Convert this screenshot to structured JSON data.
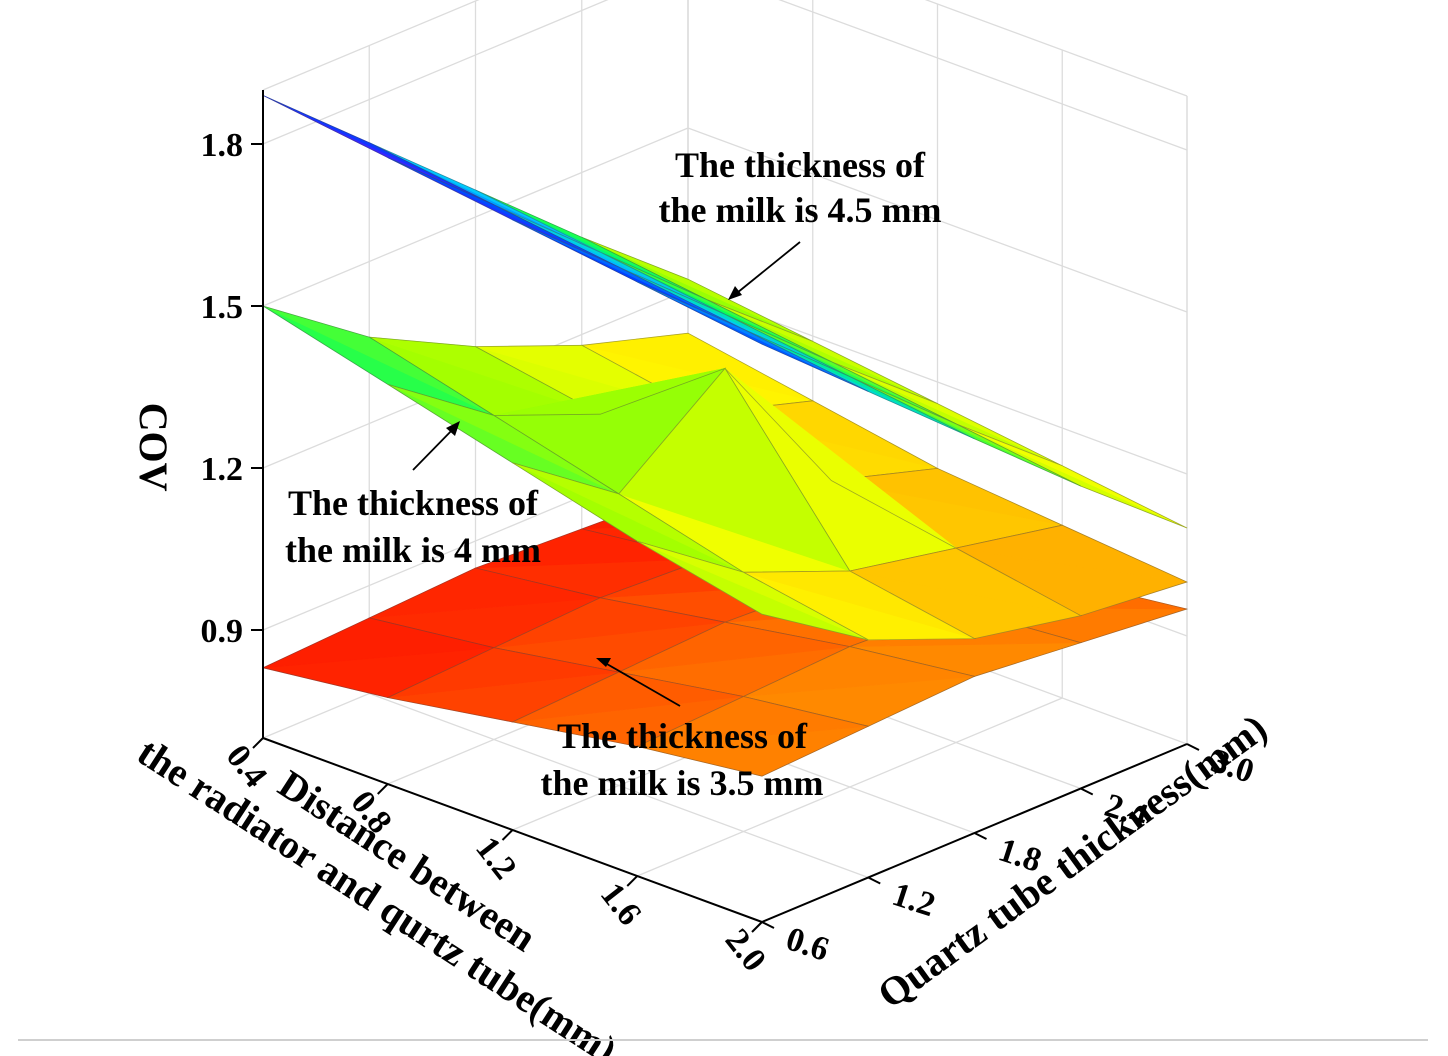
{
  "chart_data": {
    "type": "surface3d",
    "z_axis": {
      "label": "COV",
      "ticks": [
        "0.9",
        "1.2",
        "1.5",
        "1.8"
      ],
      "range": [
        0.7,
        1.9
      ]
    },
    "x_axis": {
      "label_line1": "Distance between",
      "label_line2": "the radiator and qurtz tube(mm)",
      "ticks": [
        "0.4",
        "0.8",
        "1.2",
        "1.6",
        "2.0"
      ],
      "range": [
        0.4,
        2.0
      ]
    },
    "y_axis": {
      "label": "Quartz tube thickness(mm)",
      "ticks": [
        "0.6",
        "1.2",
        "1.8",
        "2.4",
        "3.0"
      ],
      "range": [
        0.6,
        3.0
      ]
    },
    "grid": true,
    "colormap": [
      "#8000ff",
      "#0040ff",
      "#00c8ff",
      "#00ff60",
      "#a0ff00",
      "#ffff00",
      "#ffa000",
      "#ff2000",
      "#c00000"
    ],
    "series": [
      {
        "name": "The thickness of the milk is 4.5 mm",
        "annotation_line1": "The thickness of",
        "annotation_line2": "the milk is 4.5 mm",
        "x": [
          0.4,
          0.8,
          1.2,
          1.6,
          2.0
        ],
        "y": [
          0.6,
          1.2,
          1.8,
          2.4,
          3.0
        ],
        "z": [
          [
            1.89,
            1.86,
            1.83,
            1.8,
            1.77
          ],
          [
            1.72,
            1.69,
            1.66,
            1.63,
            1.6
          ],
          [
            1.55,
            1.52,
            1.49,
            1.46,
            1.43
          ],
          [
            1.38,
            1.35,
            1.32,
            1.29,
            1.26
          ],
          [
            1.22,
            1.19,
            1.16,
            1.13,
            1.1
          ]
        ]
      },
      {
        "name": "The thickness of the milk is 4 mm",
        "annotation_line1": "The thickness of",
        "annotation_line2": "the milk is 4 mm",
        "x": [
          0.4,
          0.8,
          1.2,
          1.6,
          2.0
        ],
        "y": [
          0.6,
          1.2,
          1.8,
          2.4,
          3.0
        ],
        "z": [
          [
            1.5,
            1.44,
            1.38,
            1.32,
            1.27
          ],
          [
            1.36,
            1.3,
            1.24,
            1.18,
            1.14
          ],
          [
            1.26,
            1.22,
            1.39,
            1.1,
            1.06
          ],
          [
            1.18,
            1.14,
            1.1,
            1.06,
            1.02
          ],
          [
            1.12,
            1.08,
            1.04,
            1.02,
            1.0
          ]
        ]
      },
      {
        "name": "The thickness of the milk is 3.5 mm",
        "annotation_line1": "The thickness of",
        "annotation_line2": "the milk is 3.5 mm",
        "x": [
          0.4,
          0.8,
          1.2,
          1.6,
          2.0
        ],
        "y": [
          0.6,
          1.2,
          1.8,
          2.4,
          3.0
        ],
        "z": [
          [
            0.83,
            0.86,
            0.9,
            0.94,
            0.97
          ],
          [
            0.84,
            0.87,
            0.91,
            0.95,
            0.98
          ],
          [
            0.85,
            0.88,
            0.92,
            0.96,
            0.99
          ],
          [
            0.84,
            0.87,
            0.91,
            0.95,
            0.97
          ],
          [
            0.83,
            0.86,
            0.89,
            0.92,
            0.95
          ]
        ]
      }
    ]
  }
}
